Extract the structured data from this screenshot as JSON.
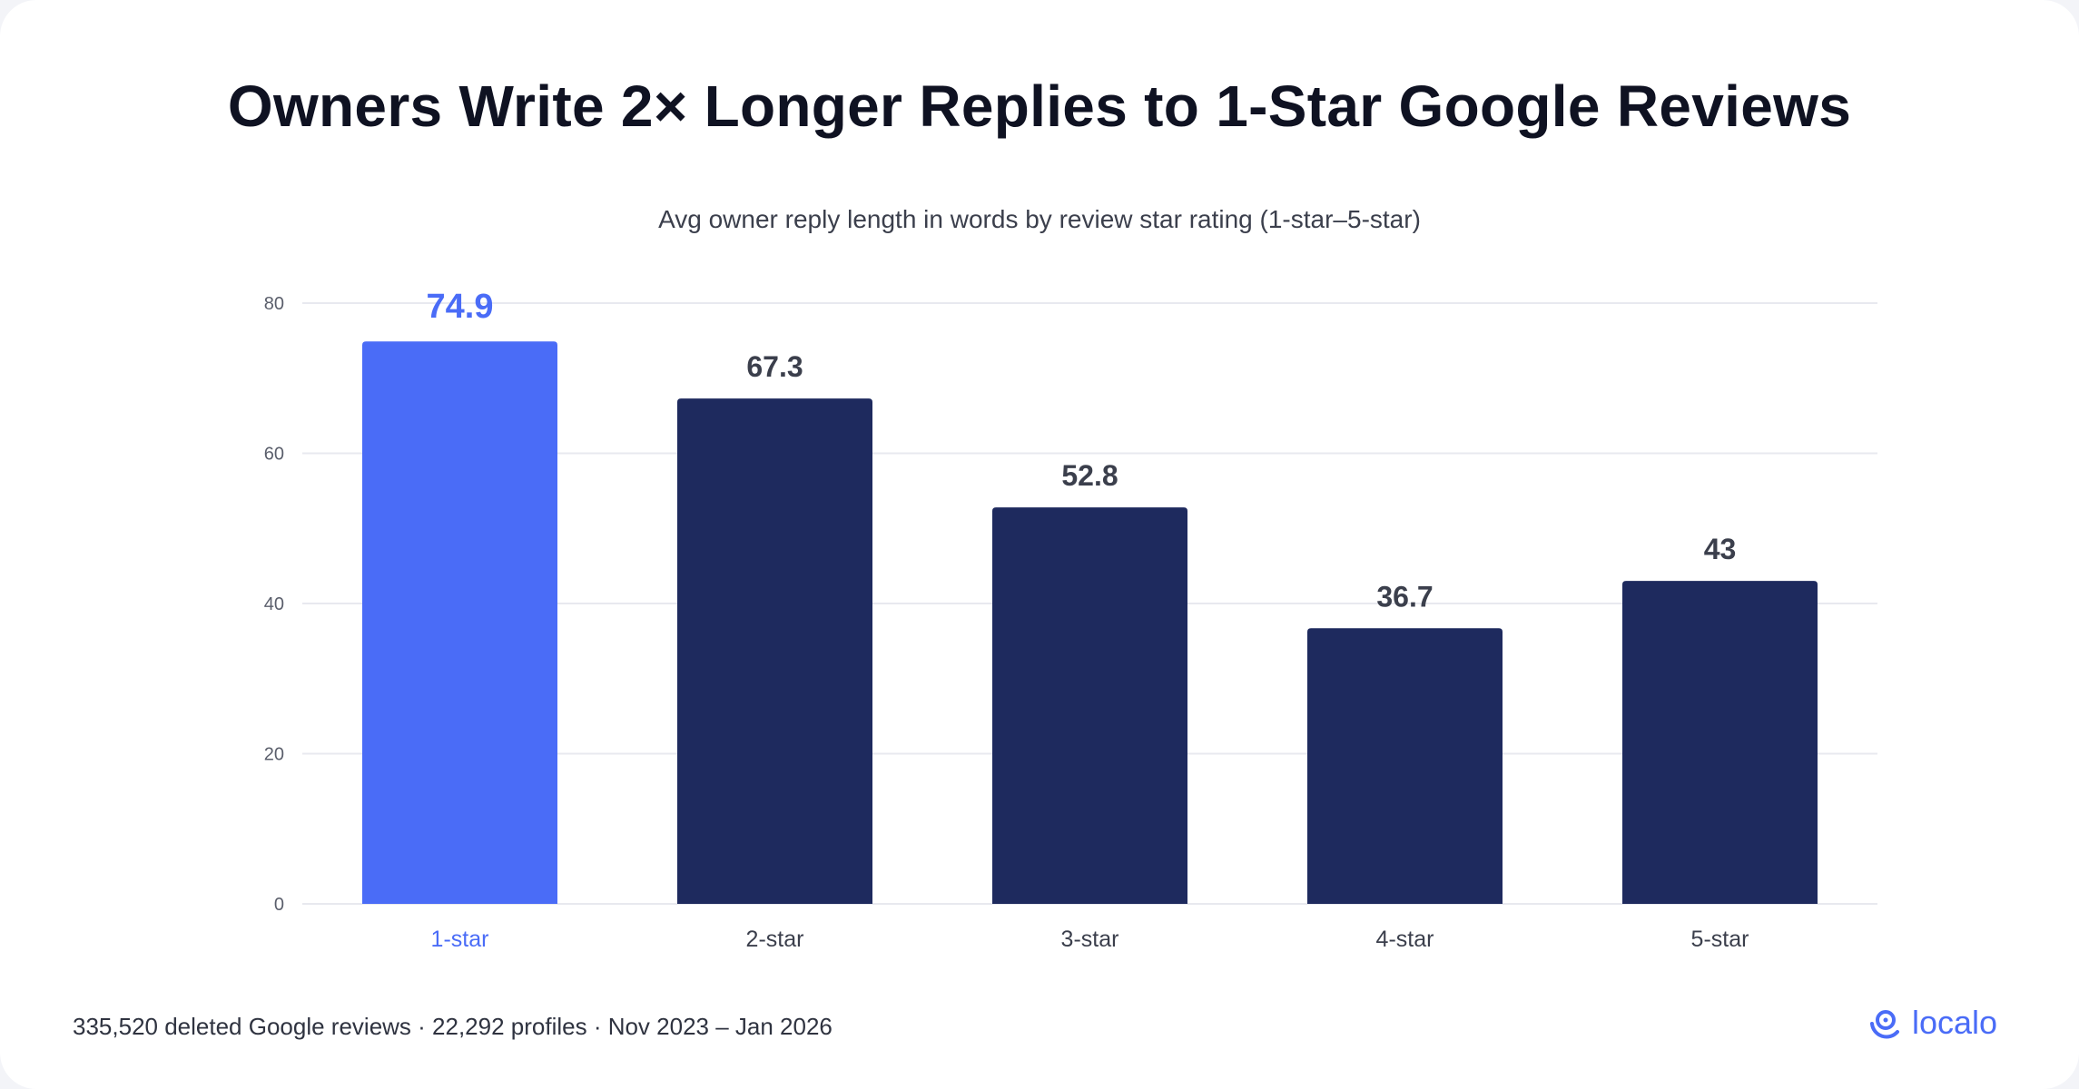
{
  "colors": {
    "highlight": "#4a6cf7",
    "bar": "#1e2a5e",
    "grid": "#e8e9ef",
    "axis_text": "#5a5e6b",
    "label_text": "#3b3f4c"
  },
  "chart_data": {
    "type": "bar",
    "title": "Owners Write 2× Longer Replies to 1-Star Google Reviews",
    "subtitle": "Avg owner reply length in words by review star rating (1-star–5-star)",
    "categories": [
      "1-star",
      "2-star",
      "3-star",
      "4-star",
      "5-star"
    ],
    "values": [
      74.9,
      67.3,
      52.8,
      36.7,
      43
    ],
    "value_labels": [
      "74.9",
      "67.3",
      "52.8",
      "36.7",
      "43"
    ],
    "highlight_index": 0,
    "ylim": [
      0,
      80
    ],
    "yticks": [
      0,
      20,
      40,
      60,
      80
    ],
    "grid": true,
    "xlabel": "",
    "ylabel": ""
  },
  "footer": {
    "note": "335,520 deleted Google reviews · 22,292 profiles · Nov 2023 – Jan 2026"
  },
  "logo": {
    "text": "localo",
    "icon": "location-pin-icon"
  }
}
